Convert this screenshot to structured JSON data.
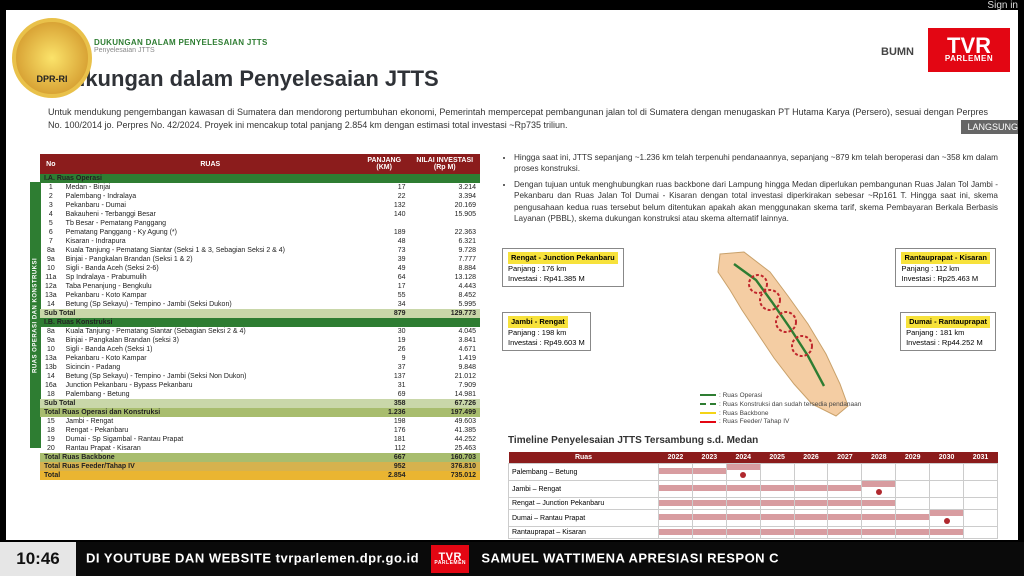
{
  "signIn": "Sign in",
  "dprLabel": "DPR-RI",
  "langsung": "LANGSUNG",
  "tvr": {
    "line1": "TVR",
    "line2": "PARLEMEN"
  },
  "bumi": "BUMN",
  "header": {
    "small": "DUKUNGAN DALAM PENYELESAIAN JTTS",
    "tiny": "Penyelesaian JTTS"
  },
  "title": "Dukungan dalam Penyelesaian JTTS",
  "intro": "Untuk mendukung pengembangan kawasan di Sumatera dan mendorong pertumbuhan ekonomi, Pemerintah mempercepat pembangunan jalan tol di Sumatera dengan menugaskan PT Hutama Karya (Persero), sesuai dengan Perpres No. 100/2014 jo. Perpres No. 42/2024. Proyek ini mencakup total panjang 2.854 km dengan estimasi total investasi ~Rp735 triliun.",
  "sidebarLabel": "RUAS OPERASI DAN KONSTRUKSI",
  "tableHead": {
    "no": "No",
    "ruas": "RUAS",
    "panjang": "PANJANG (KM)",
    "nilai": "NILAI INVESTASI (Rp M)"
  },
  "sectionA": "I.A. Ruas Operasi",
  "rowsA": [
    {
      "n": "1",
      "r": "Medan - Binjai",
      "k": "17",
      "v": "3.214"
    },
    {
      "n": "2",
      "r": "Palembang - Indralaya",
      "k": "22",
      "v": "3.394"
    },
    {
      "n": "3",
      "r": "Pekanbaru - Dumai",
      "k": "132",
      "v": "20.169"
    },
    {
      "n": "4",
      "r": "Bakauheni - Terbanggi Besar",
      "k": "140",
      "v": "15.905"
    },
    {
      "n": "5",
      "r": "Tb Besar - Pematang Panggang",
      "k": "",
      "v": ""
    },
    {
      "n": "6",
      "r": "Pematang Panggang - Ky Agung (*)",
      "k": "189",
      "v": "22.363"
    },
    {
      "n": "7",
      "r": "Kisaran - Indrapura",
      "k": "48",
      "v": "6.321"
    },
    {
      "n": "8a",
      "r": "Kuala Tanjung - Pematang Siantar (Seksi 1 & 3, Sebagian Seksi 2 & 4)",
      "k": "73",
      "v": "9.728"
    },
    {
      "n": "9a",
      "r": "Binjai - Pangkalan Brandan (Seksi 1 & 2)",
      "k": "39",
      "v": "7.777"
    },
    {
      "n": "10",
      "r": "Sigli - Banda Aceh (Seksi 2-6)",
      "k": "49",
      "v": "8.884"
    },
    {
      "n": "11a",
      "r": "Sp Indralaya - Prabumulih",
      "k": "64",
      "v": "13.128"
    },
    {
      "n": "12a",
      "r": "Taba Penanjung - Bengkulu",
      "k": "17",
      "v": "4.443"
    },
    {
      "n": "13a",
      "r": "Pekanbaru - Koto Kampar",
      "k": "55",
      "v": "8.452"
    },
    {
      "n": "14",
      "r": "Betung (Sp Sekayu) - Tempino - Jambi (Seksi Dukon)",
      "k": "34",
      "v": "5.995"
    }
  ],
  "subTotA": {
    "label": "Sub Total",
    "k": "879",
    "v": "129.773"
  },
  "sectionB": "I.B. Ruas Konstruksi",
  "rowsB": [
    {
      "n": "8a",
      "r": "Kuala Tanjung - Pematang Siantar (Sebagian Seksi 2 & 4)",
      "k": "30",
      "v": "4.045"
    },
    {
      "n": "9a",
      "r": "Binjai - Pangkalan Brandan (seksi 3)",
      "k": "19",
      "v": "3.841"
    },
    {
      "n": "10",
      "r": "Sigli - Banda Aceh (Seksi 1)",
      "k": "26",
      "v": "4.671"
    },
    {
      "n": "13a",
      "r": "Pekanbaru - Koto Kampar",
      "k": "9",
      "v": "1.419"
    },
    {
      "n": "13b",
      "r": "Sicincin - Padang",
      "k": "37",
      "v": "9.848"
    },
    {
      "n": "14",
      "r": "Betung (Sp Sekayu) - Tempino - Jambi (Seksi Non Dukon)",
      "k": "137",
      "v": "21.012"
    },
    {
      "n": "16a",
      "r": "Junction Pekanbaru - Bypass Pekanbaru",
      "k": "31",
      "v": "7.909"
    },
    {
      "n": "18",
      "r": "Palembang - Betung",
      "k": "69",
      "v": "14.981"
    }
  ],
  "subTotB": {
    "label": "Sub Total",
    "k": "358",
    "v": "67.726"
  },
  "tot1": {
    "label": "Total Ruas Operasi dan Konstruksi",
    "k": "1.236",
    "v": "197.499"
  },
  "rowsC": [
    {
      "n": "15",
      "r": "Jambi - Rengat",
      "k": "198",
      "v": "49.603"
    },
    {
      "n": "18",
      "r": "Rengat - Pekanbaru",
      "k": "176",
      "v": "41.385"
    },
    {
      "n": "19",
      "r": "Dumai - Sp Sigambal - Rantau Prapat",
      "k": "181",
      "v": "44.252"
    },
    {
      "n": "20",
      "r": "Rantau Prapat - Kisaran",
      "k": "112",
      "v": "25.463"
    }
  ],
  "tot2": {
    "label": "Total Ruas Backbone",
    "k": "667",
    "v": "160.703"
  },
  "tot3": {
    "label": "Total Ruas Feeder/Tahap IV",
    "k": "952",
    "v": "376.810"
  },
  "tot4": {
    "label": "Total",
    "k": "2.854",
    "v": "735.012"
  },
  "bullets": [
    "Hingga saat ini, JTTS sepanjang ~1.236 km telah terpenuhi pendanaannya, sepanjang ~879 km telah beroperasi dan ~358 km dalam proses konstruksi.",
    "Dengan tujuan untuk menghubungkan ruas backbone dari Lampung hingga Medan diperlukan pembangunan Ruas Jalan Tol Jambi - Pekanbaru dan Ruas Jalan Tol Dumai - Kisaran dengan total investasi diperkirakan sebesar ~Rp161 T. Hingga saat ini, skema pengusahaan kedua ruas tersebut belum ditentukan apakah akan menggunakan skema tarif, skema Pembayaran Berkala Berbasis Layanan (PBBL), skema dukungan konstruksi atau skema alternatif lainnya."
  ],
  "callouts": {
    "c1": {
      "title": "Rengat - Junction Pekanbaru",
      "l1": "Panjang   :  176 km",
      "l2": "Investasi  :  Rp41.385 M"
    },
    "c2": {
      "title": "Jambi - Rengat",
      "l1": "Panjang   :  198 km",
      "l2": "Investasi  :  Rp49.603 M"
    },
    "c3": {
      "title": "Rantauprapat - Kisaran",
      "l1": "Panjang   :  112 km",
      "l2": "Investasi  :  Rp25.463 M"
    },
    "c4": {
      "title": "Dumai - Rantauprapat",
      "l1": "Panjang   :  181 km",
      "l2": "Investasi  :  Rp44.252 M"
    }
  },
  "legend": {
    "a": "Ruas Operasi",
    "b": "Ruas Konstruksi dan sudah tersedia pendanaan",
    "c": "Ruas Backbone",
    "d": "Ruas Feeder/ Tahap IV"
  },
  "legendColors": {
    "a": "#2e7d32",
    "b": "#2e7d32",
    "c": "#f4d416",
    "d": "#e30613"
  },
  "timelineTitle": "Timeline Penyelesaian JTTS Tersambung s.d. Medan",
  "tlHead": [
    "Ruas",
    "2022",
    "2023",
    "2024",
    "2025",
    "2026",
    "2027",
    "2028",
    "2029",
    "2030",
    "2031"
  ],
  "tlRows": [
    {
      "r": "Palembang – Betung",
      "s": 1,
      "e": 3,
      "dot": 3
    },
    {
      "r": "Jambi – Rengat",
      "s": 1,
      "e": 7,
      "dot": 7
    },
    {
      "r": "Rengat – Junction Pekanbaru",
      "s": 1,
      "e": 7,
      "dot": 0
    },
    {
      "r": "Dumai – Rantau Prapat",
      "s": 1,
      "e": 9,
      "dot": 9
    },
    {
      "r": "Rantauprapat – Kisaran",
      "s": 1,
      "e": 9,
      "dot": 0
    }
  ],
  "ticker": {
    "time": "10:46",
    "left": "DI YOUTUBE DAN WEBSITE tvrparlemen.dpr.go.id",
    "right": "SAMUEL WATTIMENA APRESIASI RESPON C"
  }
}
